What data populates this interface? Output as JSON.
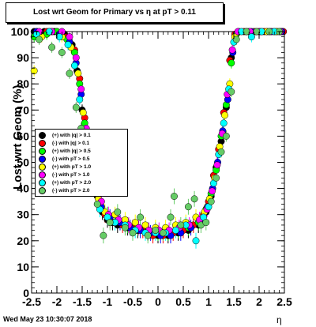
{
  "title": "Lost wrt Geom for Primary vs   η at pT > 0.11",
  "ylabel": "Lost wrt Geom (%)",
  "xlabel": "η",
  "timestamp": "Wed May 23 10:30:07 2018",
  "chart_data": {
    "type": "scatter",
    "xlim": [
      -2.5,
      2.5
    ],
    "ylim": [
      0,
      100
    ],
    "x_ticks": [
      "-2.5",
      "-2",
      "-1.5",
      "-1",
      "-0.5",
      "0",
      "0.5",
      "1",
      "1.5",
      "2",
      "2.5"
    ],
    "y_ticks": [
      "0",
      "10",
      "20",
      "30",
      "40",
      "50",
      "60",
      "70",
      "80",
      "90",
      "100"
    ],
    "legend_position": "left-middle",
    "series": [
      {
        "name": "(+) with |q| > 0.1",
        "color": "#000000",
        "points": [
          [
            -2.45,
            100
          ],
          [
            -2.25,
            100
          ],
          [
            -2.05,
            100
          ],
          [
            -1.85,
            99
          ],
          [
            -1.7,
            95
          ],
          [
            -1.6,
            85
          ],
          [
            -1.5,
            70
          ],
          [
            -1.4,
            57
          ],
          [
            -1.3,
            46
          ],
          [
            -1.2,
            37
          ],
          [
            -1.1,
            31
          ],
          [
            -1.0,
            28
          ],
          [
            -0.9,
            27
          ],
          [
            -0.8,
            26
          ],
          [
            -0.6,
            25
          ],
          [
            -0.4,
            24
          ],
          [
            -0.2,
            23
          ],
          [
            0.0,
            22
          ],
          [
            0.2,
            22
          ],
          [
            0.4,
            23
          ],
          [
            0.6,
            24
          ],
          [
            0.8,
            26
          ],
          [
            0.95,
            31
          ],
          [
            1.05,
            37
          ],
          [
            1.15,
            48
          ],
          [
            1.25,
            58
          ],
          [
            1.35,
            71
          ],
          [
            1.45,
            90
          ],
          [
            1.55,
            99
          ],
          [
            1.75,
            100
          ],
          [
            1.95,
            100
          ],
          [
            2.15,
            100
          ],
          [
            2.35,
            100
          ],
          [
            2.45,
            100
          ]
        ]
      },
      {
        "name": "(-) with |q| > 0.1",
        "color": "#ff0000",
        "points": [
          [
            -2.4,
            100
          ],
          [
            -2.2,
            100
          ],
          [
            -2.0,
            100
          ],
          [
            -1.8,
            98
          ],
          [
            -1.65,
            93
          ],
          [
            -1.55,
            82
          ],
          [
            -1.45,
            67
          ],
          [
            -1.35,
            54
          ],
          [
            -1.25,
            43
          ],
          [
            -1.15,
            35
          ],
          [
            -1.05,
            30
          ],
          [
            -0.95,
            28
          ],
          [
            -0.7,
            26
          ],
          [
            -0.5,
            25
          ],
          [
            -0.3,
            24
          ],
          [
            -0.1,
            22
          ],
          [
            0.1,
            22
          ],
          [
            0.3,
            23
          ],
          [
            0.5,
            24
          ],
          [
            0.7,
            26
          ],
          [
            0.9,
            30
          ],
          [
            1.0,
            35
          ],
          [
            1.1,
            45
          ],
          [
            1.2,
            55
          ],
          [
            1.3,
            69
          ],
          [
            1.42,
            89
          ],
          [
            1.52,
            99
          ],
          [
            1.7,
            100
          ],
          [
            1.9,
            100
          ],
          [
            2.1,
            100
          ],
          [
            2.3,
            100
          ],
          [
            2.48,
            100
          ]
        ]
      },
      {
        "name": "(+) with |q| > 0.5",
        "color": "#00ff00",
        "points": [
          [
            -2.45,
            98
          ],
          [
            -2.2,
            99
          ],
          [
            -2.0,
            100
          ],
          [
            -1.8,
            97
          ],
          [
            -1.65,
            92
          ],
          [
            -1.55,
            80
          ],
          [
            -1.45,
            65
          ],
          [
            -1.35,
            52
          ],
          [
            -1.25,
            41
          ],
          [
            -1.15,
            34
          ],
          [
            -1.0,
            30
          ],
          [
            -0.8,
            28
          ],
          [
            -0.6,
            26
          ],
          [
            -0.4,
            25
          ],
          [
            -0.2,
            24
          ],
          [
            0.0,
            23
          ],
          [
            0.2,
            23
          ],
          [
            0.4,
            24
          ],
          [
            0.6,
            25
          ],
          [
            0.8,
            27
          ],
          [
            0.95,
            32
          ],
          [
            1.05,
            38
          ],
          [
            1.15,
            47
          ],
          [
            1.25,
            60
          ],
          [
            1.35,
            72
          ],
          [
            1.45,
            88
          ],
          [
            1.55,
            99
          ],
          [
            1.8,
            100
          ],
          [
            2.0,
            100
          ],
          [
            2.2,
            100
          ],
          [
            2.4,
            100
          ]
        ]
      },
      {
        "name": "(-) with pT > 0.5",
        "color": "#0000ff",
        "points": [
          [
            -2.4,
            100
          ],
          [
            -2.15,
            100
          ],
          [
            -1.95,
            99
          ],
          [
            -1.75,
            96
          ],
          [
            -1.62,
            88
          ],
          [
            -1.52,
            76
          ],
          [
            -1.42,
            62
          ],
          [
            -1.32,
            50
          ],
          [
            -1.22,
            40
          ],
          [
            -1.12,
            33
          ],
          [
            -0.95,
            29
          ],
          [
            -0.75,
            27
          ],
          [
            -0.55,
            25
          ],
          [
            -0.35,
            24
          ],
          [
            -0.15,
            23
          ],
          [
            0.05,
            22
          ],
          [
            0.25,
            22
          ],
          [
            0.45,
            23
          ],
          [
            0.65,
            25
          ],
          [
            0.85,
            28
          ],
          [
            0.98,
            33
          ],
          [
            1.08,
            40
          ],
          [
            1.18,
            50
          ],
          [
            1.28,
            62
          ],
          [
            1.38,
            74
          ],
          [
            1.48,
            92
          ],
          [
            1.6,
            100
          ],
          [
            1.85,
            100
          ],
          [
            2.05,
            100
          ],
          [
            2.25,
            100
          ],
          [
            2.45,
            100
          ]
        ]
      },
      {
        "name": "(+) with pT > 1.0",
        "color": "#ffff00",
        "points": [
          [
            -2.45,
            85
          ],
          [
            -2.3,
            98
          ],
          [
            -2.1,
            100
          ],
          [
            -1.9,
            98
          ],
          [
            -1.72,
            94
          ],
          [
            -1.58,
            84
          ],
          [
            -1.48,
            69
          ],
          [
            -1.38,
            55
          ],
          [
            -1.28,
            44
          ],
          [
            -1.18,
            36
          ],
          [
            -1.05,
            31
          ],
          [
            -0.85,
            30
          ],
          [
            -0.65,
            28
          ],
          [
            -0.45,
            27
          ],
          [
            -0.25,
            26
          ],
          [
            -0.05,
            25
          ],
          [
            0.15,
            25
          ],
          [
            0.35,
            26
          ],
          [
            0.55,
            27
          ],
          [
            0.75,
            29
          ],
          [
            0.92,
            31
          ],
          [
            1.02,
            36
          ],
          [
            1.12,
            44
          ],
          [
            1.22,
            56
          ],
          [
            1.32,
            68
          ],
          [
            1.42,
            80
          ],
          [
            1.52,
            98
          ],
          [
            1.75,
            100
          ],
          [
            1.95,
            100
          ],
          [
            2.15,
            100
          ],
          [
            2.35,
            100
          ]
        ]
      },
      {
        "name": "(-) with pT > 1.0",
        "color": "#ff00ff",
        "points": [
          [
            -2.35,
            100
          ],
          [
            -2.1,
            100
          ],
          [
            -1.9,
            100
          ],
          [
            -1.75,
            98
          ],
          [
            -1.62,
            90
          ],
          [
            -1.52,
            78
          ],
          [
            -1.42,
            63
          ],
          [
            -1.32,
            51
          ],
          [
            -1.22,
            42
          ],
          [
            -1.12,
            35
          ],
          [
            -0.98,
            30
          ],
          [
            -0.78,
            28
          ],
          [
            -0.58,
            26
          ],
          [
            -0.38,
            25
          ],
          [
            -0.18,
            24
          ],
          [
            0.02,
            24
          ],
          [
            0.22,
            24
          ],
          [
            0.42,
            25
          ],
          [
            0.62,
            26
          ],
          [
            0.82,
            28
          ],
          [
            0.97,
            32
          ],
          [
            1.07,
            39
          ],
          [
            1.17,
            49
          ],
          [
            1.27,
            61
          ],
          [
            1.37,
            76
          ],
          [
            1.47,
            93
          ],
          [
            1.58,
            100
          ],
          [
            1.82,
            100
          ],
          [
            2.02,
            100
          ],
          [
            2.22,
            100
          ],
          [
            2.42,
            100
          ]
        ]
      },
      {
        "name": "(+) with pT > 2.0",
        "color": "#00ffff",
        "points": [
          [
            -2.4,
            99
          ],
          [
            -2.15,
            100
          ],
          [
            -1.95,
            98
          ],
          [
            -1.78,
            95
          ],
          [
            -1.65,
            87
          ],
          [
            -1.55,
            74
          ],
          [
            -1.45,
            59
          ],
          [
            -1.35,
            48
          ],
          [
            -1.25,
            39
          ],
          [
            -1.15,
            32
          ],
          [
            -1.0,
            29
          ],
          [
            -0.85,
            27
          ],
          [
            -0.65,
            26
          ],
          [
            -0.45,
            24
          ],
          [
            -0.25,
            23
          ],
          [
            -0.05,
            23
          ],
          [
            0.15,
            23
          ],
          [
            0.35,
            24
          ],
          [
            0.55,
            26
          ],
          [
            0.75,
            20
          ],
          [
            0.9,
            29
          ],
          [
            1.0,
            33
          ],
          [
            1.1,
            42
          ],
          [
            1.2,
            53
          ],
          [
            1.3,
            65
          ],
          [
            1.4,
            78
          ],
          [
            1.5,
            96
          ],
          [
            1.65,
            100
          ],
          [
            1.85,
            98
          ],
          [
            2.05,
            100
          ],
          [
            2.3,
            100
          ]
        ]
      },
      {
        "name": "(-) with pT > 2.0",
        "color": "#66cc66",
        "points": [
          [
            -2.35,
            97
          ],
          [
            -2.1,
            94
          ],
          [
            -1.9,
            92
          ],
          [
            -1.75,
            84
          ],
          [
            -1.62,
            71
          ],
          [
            -1.52,
            63
          ],
          [
            -1.42,
            49
          ],
          [
            -1.32,
            40
          ],
          [
            -1.2,
            34
          ],
          [
            -1.08,
            22
          ],
          [
            -0.95,
            27
          ],
          [
            -0.8,
            31
          ],
          [
            -0.65,
            25
          ],
          [
            -0.5,
            23
          ],
          [
            -0.35,
            29
          ],
          [
            -0.2,
            22
          ],
          [
            -0.05,
            24
          ],
          [
            0.1,
            23
          ],
          [
            0.25,
            29
          ],
          [
            0.32,
            37
          ],
          [
            0.45,
            26
          ],
          [
            0.6,
            33
          ],
          [
            0.72,
            36
          ],
          [
            0.85,
            26
          ],
          [
            0.95,
            27
          ],
          [
            1.05,
            35
          ],
          [
            1.15,
            44
          ],
          [
            1.25,
            54
          ],
          [
            1.35,
            60
          ],
          [
            1.45,
            77
          ],
          [
            1.55,
            97
          ],
          [
            1.75,
            100
          ],
          [
            1.95,
            100
          ],
          [
            2.2,
            100
          ],
          [
            2.4,
            100
          ]
        ]
      }
    ]
  }
}
